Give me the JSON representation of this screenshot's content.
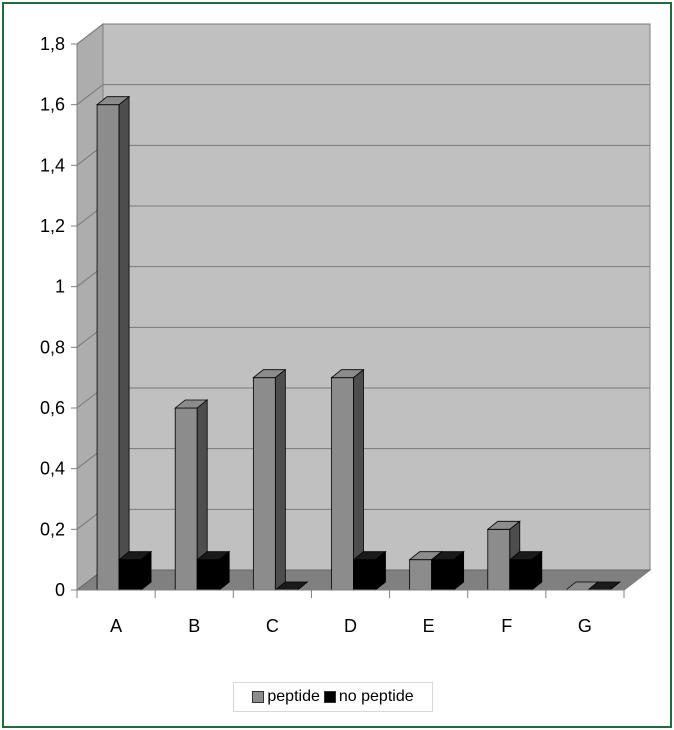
{
  "chart_data": {
    "type": "bar",
    "categories": [
      "A",
      "B",
      "C",
      "D",
      "E",
      "F",
      "G"
    ],
    "series": [
      {
        "name": "peptide",
        "values": [
          1.6,
          0.6,
          0.7,
          0.7,
          0.1,
          0.2,
          0.0
        ],
        "color": "#8c8c8c"
      },
      {
        "name": "no peptide",
        "values": [
          0.1,
          0.1,
          0.0,
          0.1,
          0.1,
          0.1,
          0.0
        ],
        "color": "#000000"
      }
    ],
    "y_ticks": [
      "0",
      "0,2",
      "0,4",
      "0,6",
      "0,8",
      "1",
      "1,2",
      "1,4",
      "1,6",
      "1,8"
    ],
    "ylim": [
      0,
      1.8
    ],
    "grid": true,
    "legend_position": "bottom",
    "plot_background": "#c0c0c0",
    "floor_color": "#808080"
  }
}
